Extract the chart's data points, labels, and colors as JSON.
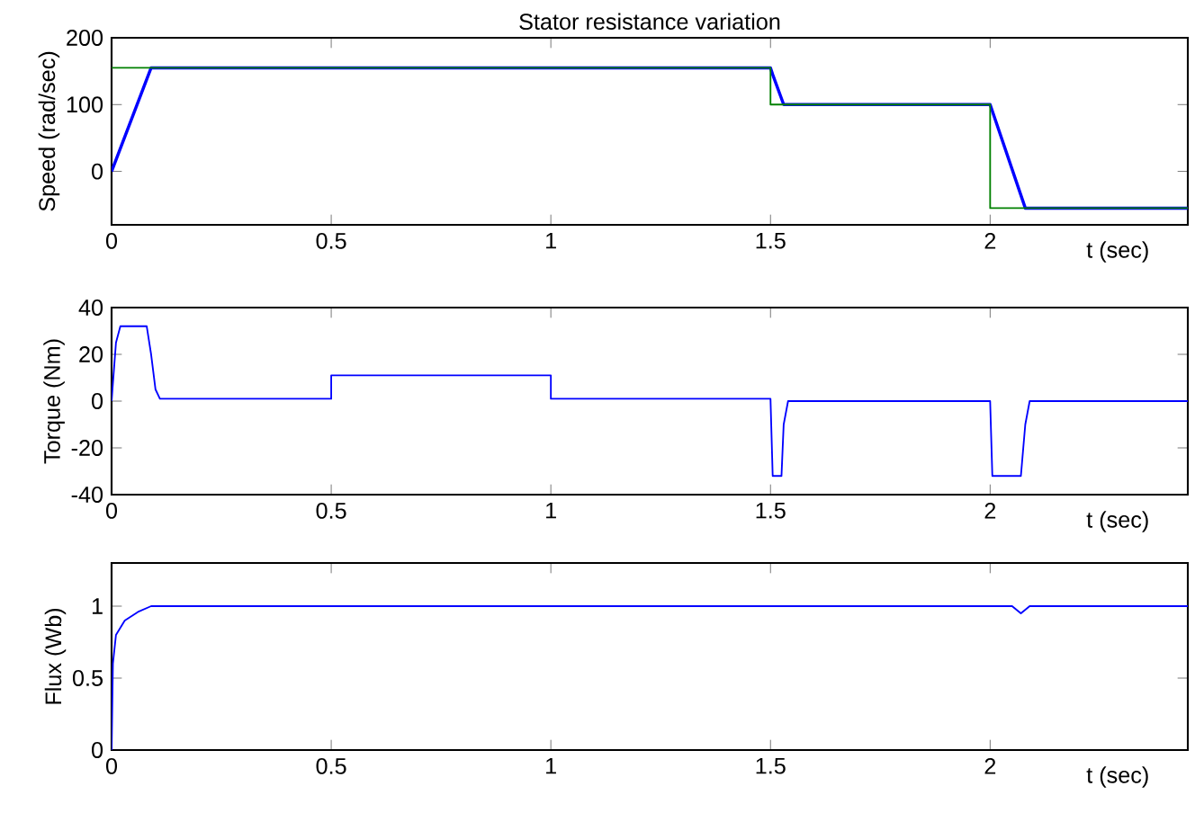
{
  "chart_data": [
    {
      "type": "line",
      "title": "Stator resistance variation",
      "xlabel": "t (sec)",
      "ylabel": "Speed (rad/sec)",
      "xlim": [
        0,
        2.45
      ],
      "ylim": [
        -80,
        200
      ],
      "xticks": [
        0,
        0.5,
        1,
        1.5,
        2
      ],
      "yticks": [
        0,
        100,
        200
      ],
      "series": [
        {
          "color": "#0000ff",
          "x": [
            0,
            0.09,
            1.5,
            1.505,
            1.53,
            2.0,
            2.08,
            2.45
          ],
          "values": [
            0,
            155,
            155,
            145,
            100,
            100,
            -55,
            -55
          ]
        },
        {
          "color": "#008000",
          "x": [
            0,
            1.5,
            1.5,
            2.0,
            2.0,
            2.45
          ],
          "values": [
            155,
            155,
            100,
            100,
            -55,
            -55
          ]
        }
      ]
    },
    {
      "type": "line",
      "xlabel": "t (sec)",
      "ylabel": "Torque (Nm)",
      "xlim": [
        0,
        2.45
      ],
      "ylim": [
        -40,
        40
      ],
      "xticks": [
        0,
        0.5,
        1,
        1.5,
        2
      ],
      "yticks": [
        -40,
        -20,
        0,
        20,
        40
      ],
      "series": [
        {
          "color": "#0000ff",
          "x": [
            0,
            0.01,
            0.02,
            0.08,
            0.09,
            0.1,
            0.11,
            0.5,
            0.5,
            1.0,
            1.0,
            1.5,
            1.505,
            1.525,
            1.53,
            1.54,
            2.0,
            2.005,
            2.07,
            2.08,
            2.09,
            2.45
          ],
          "values": [
            0,
            25,
            32,
            32,
            20,
            5,
            1,
            1,
            11,
            11,
            1,
            1,
            -32,
            -32,
            -10,
            0,
            0,
            -32,
            -32,
            -10,
            0,
            0
          ]
        }
      ]
    },
    {
      "type": "line",
      "xlabel": "t (sec)",
      "ylabel": "Flux (Wb)",
      "xlim": [
        0,
        2.45
      ],
      "ylim": [
        0,
        1.3
      ],
      "xticks": [
        0,
        0.5,
        1,
        1.5,
        2
      ],
      "yticks": [
        0,
        0.5,
        1
      ],
      "series": [
        {
          "color": "#0000ff",
          "x": [
            0,
            0.003,
            0.01,
            0.03,
            0.06,
            0.09,
            2.05,
            2.07,
            2.09,
            2.45
          ],
          "values": [
            0,
            0.6,
            0.8,
            0.9,
            0.96,
            1.0,
            1.0,
            0.95,
            1.0,
            1.0
          ]
        }
      ]
    }
  ]
}
